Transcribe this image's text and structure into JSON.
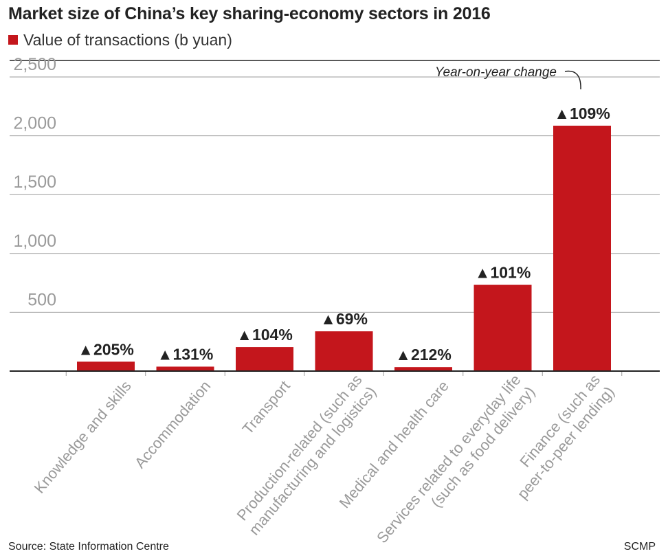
{
  "colors": {
    "bar": "#c4161c",
    "grid": "#9a9a9a",
    "tick": "#9a9a9a",
    "axis": "#222222",
    "text": "#222222"
  },
  "chart_data": {
    "type": "bar",
    "title": "Market size of China’s key sharing-economy sectors in 2016",
    "legend": "Value of transactions (b yuan)",
    "legend_position": "top-left",
    "categories": [
      "Knowledge and skills",
      "Accommodation",
      "Transport",
      "Production-related (such as|manufacturing and logistics)",
      "Medical and health care",
      "Services related to everyday life|(such as food delivery)",
      "Finance (such as|peer-to-peer lending)"
    ],
    "series": [
      {
        "name": "Value of transactions (b yuan)",
        "values": [
          80,
          38,
          204,
          338,
          34,
          733,
          2086
        ]
      }
    ],
    "data_labels": [
      "▲205%",
      "▲131%",
      "▲104%",
      "▲69%",
      "▲212%",
      "▲101%",
      "▲109%"
    ],
    "annotation": "Year-on-year change",
    "ylim": [
      0,
      2500
    ],
    "yticks": [
      500,
      1000,
      1500,
      2000,
      2500
    ],
    "ytick_labels": [
      "500",
      "1,000",
      "1,500",
      "2,000",
      "2,500"
    ],
    "grid": true,
    "source": "Source: State Information Centre",
    "credit": "SCMP"
  }
}
